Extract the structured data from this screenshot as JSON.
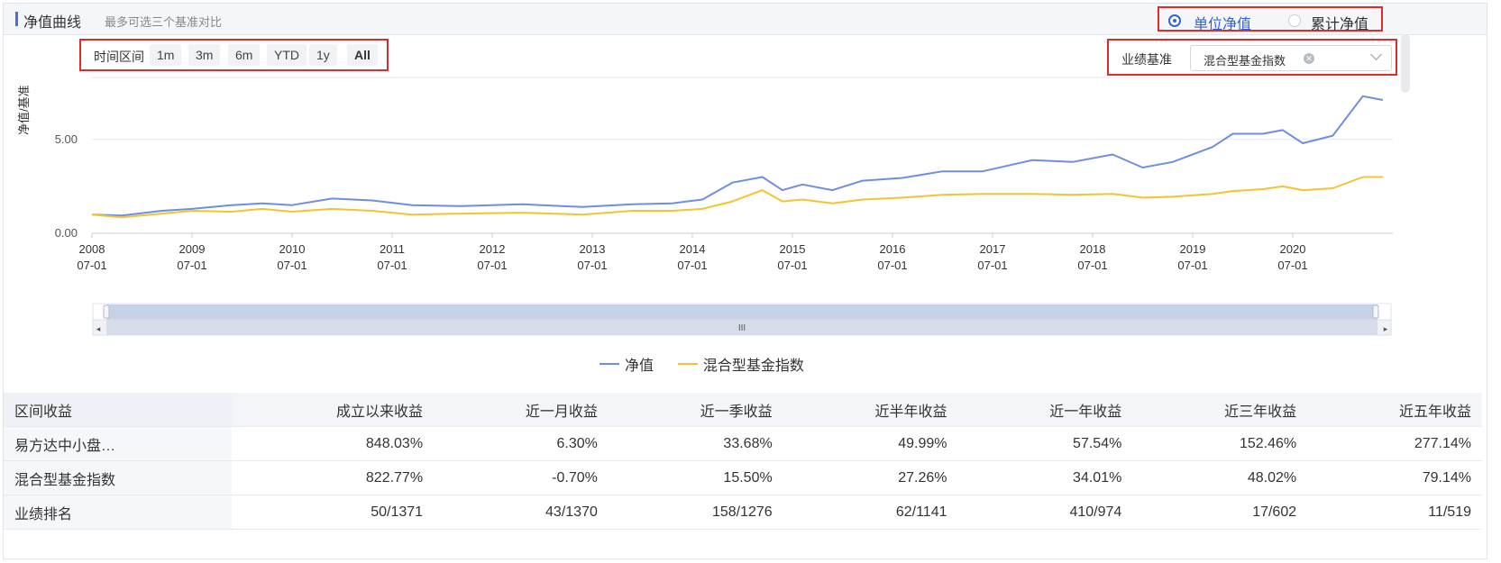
{
  "header": {
    "title": "净值曲线",
    "subtitle": "最多可选三个基准对比"
  },
  "nav_type": {
    "options": [
      "单位净值",
      "累计净值"
    ],
    "selected": "单位净值"
  },
  "time_range": {
    "label": "时间区间",
    "buttons": [
      "1m",
      "3m",
      "6m",
      "YTD",
      "1y",
      "All"
    ],
    "active": "All"
  },
  "benchmark": {
    "label": "业绩基准",
    "selected": "混合型基金指数"
  },
  "chart_data": {
    "type": "line",
    "ylabel": "净值/基准",
    "ylim": [
      0,
      8.3
    ],
    "y_ticks": [
      "5.00",
      "0.00"
    ],
    "x_ticks": [
      [
        "2008",
        "07-01"
      ],
      [
        "2009",
        "07-01"
      ],
      [
        "2010",
        "07-01"
      ],
      [
        "2011",
        "07-01"
      ],
      [
        "2012",
        "07-01"
      ],
      [
        "2013",
        "07-01"
      ],
      [
        "2014",
        "07-01"
      ],
      [
        "2015",
        "07-01"
      ],
      [
        "2016",
        "07-01"
      ],
      [
        "2017",
        "07-01"
      ],
      [
        "2018",
        "07-01"
      ],
      [
        "2019",
        "07-01"
      ],
      [
        "2020",
        "07-01"
      ]
    ],
    "x": [
      2008.5,
      2008.8,
      2009.2,
      2009.5,
      2009.9,
      2010.2,
      2010.5,
      2010.9,
      2011.3,
      2011.7,
      2012.2,
      2012.8,
      2013.4,
      2013.9,
      2014.3,
      2014.6,
      2014.9,
      2015.2,
      2015.4,
      2015.6,
      2015.9,
      2016.2,
      2016.6,
      2017.0,
      2017.4,
      2017.9,
      2018.3,
      2018.7,
      2019.0,
      2019.3,
      2019.7,
      2019.9,
      2020.2,
      2020.4,
      2020.6,
      2020.9,
      2021.2,
      2021.4
    ],
    "series": [
      {
        "name": "净值",
        "color": "#6e8ee0",
        "values": [
          1.0,
          0.95,
          1.2,
          1.3,
          1.5,
          1.6,
          1.5,
          1.85,
          1.75,
          1.5,
          1.45,
          1.55,
          1.4,
          1.55,
          1.6,
          1.8,
          2.7,
          3.0,
          2.3,
          2.6,
          2.3,
          2.8,
          2.95,
          3.3,
          3.3,
          3.9,
          3.8,
          4.2,
          3.5,
          3.8,
          4.6,
          5.3,
          5.3,
          5.5,
          4.8,
          5.2,
          7.3,
          7.1
        ]
      },
      {
        "name": "混合型基金指数",
        "color": "#f4c430",
        "values": [
          1.0,
          0.85,
          1.05,
          1.2,
          1.15,
          1.3,
          1.15,
          1.3,
          1.2,
          1.0,
          1.05,
          1.1,
          1.0,
          1.2,
          1.2,
          1.3,
          1.7,
          2.3,
          1.7,
          1.8,
          1.6,
          1.8,
          1.9,
          2.05,
          2.1,
          2.1,
          2.05,
          2.1,
          1.9,
          1.95,
          2.1,
          2.25,
          2.35,
          2.5,
          2.3,
          2.4,
          3.0,
          3.0
        ]
      }
    ]
  },
  "returns_table": {
    "headers": [
      "区间收益",
      "成立以来收益",
      "近一月收益",
      "近一季收益",
      "近半年收益",
      "近一年收益",
      "近三年收益",
      "近五年收益"
    ],
    "rows": [
      [
        "易方达中小盘…",
        "848.03%",
        "6.30%",
        "33.68%",
        "49.99%",
        "57.54%",
        "152.46%",
        "277.14%"
      ],
      [
        "混合型基金指数",
        "822.77%",
        "-0.70%",
        "15.50%",
        "27.26%",
        "34.01%",
        "48.02%",
        "79.14%"
      ],
      [
        "业绩排名",
        "50/1371",
        "43/1370",
        "158/1276",
        "62/1141",
        "410/974",
        "17/602",
        "11/519"
      ]
    ]
  }
}
